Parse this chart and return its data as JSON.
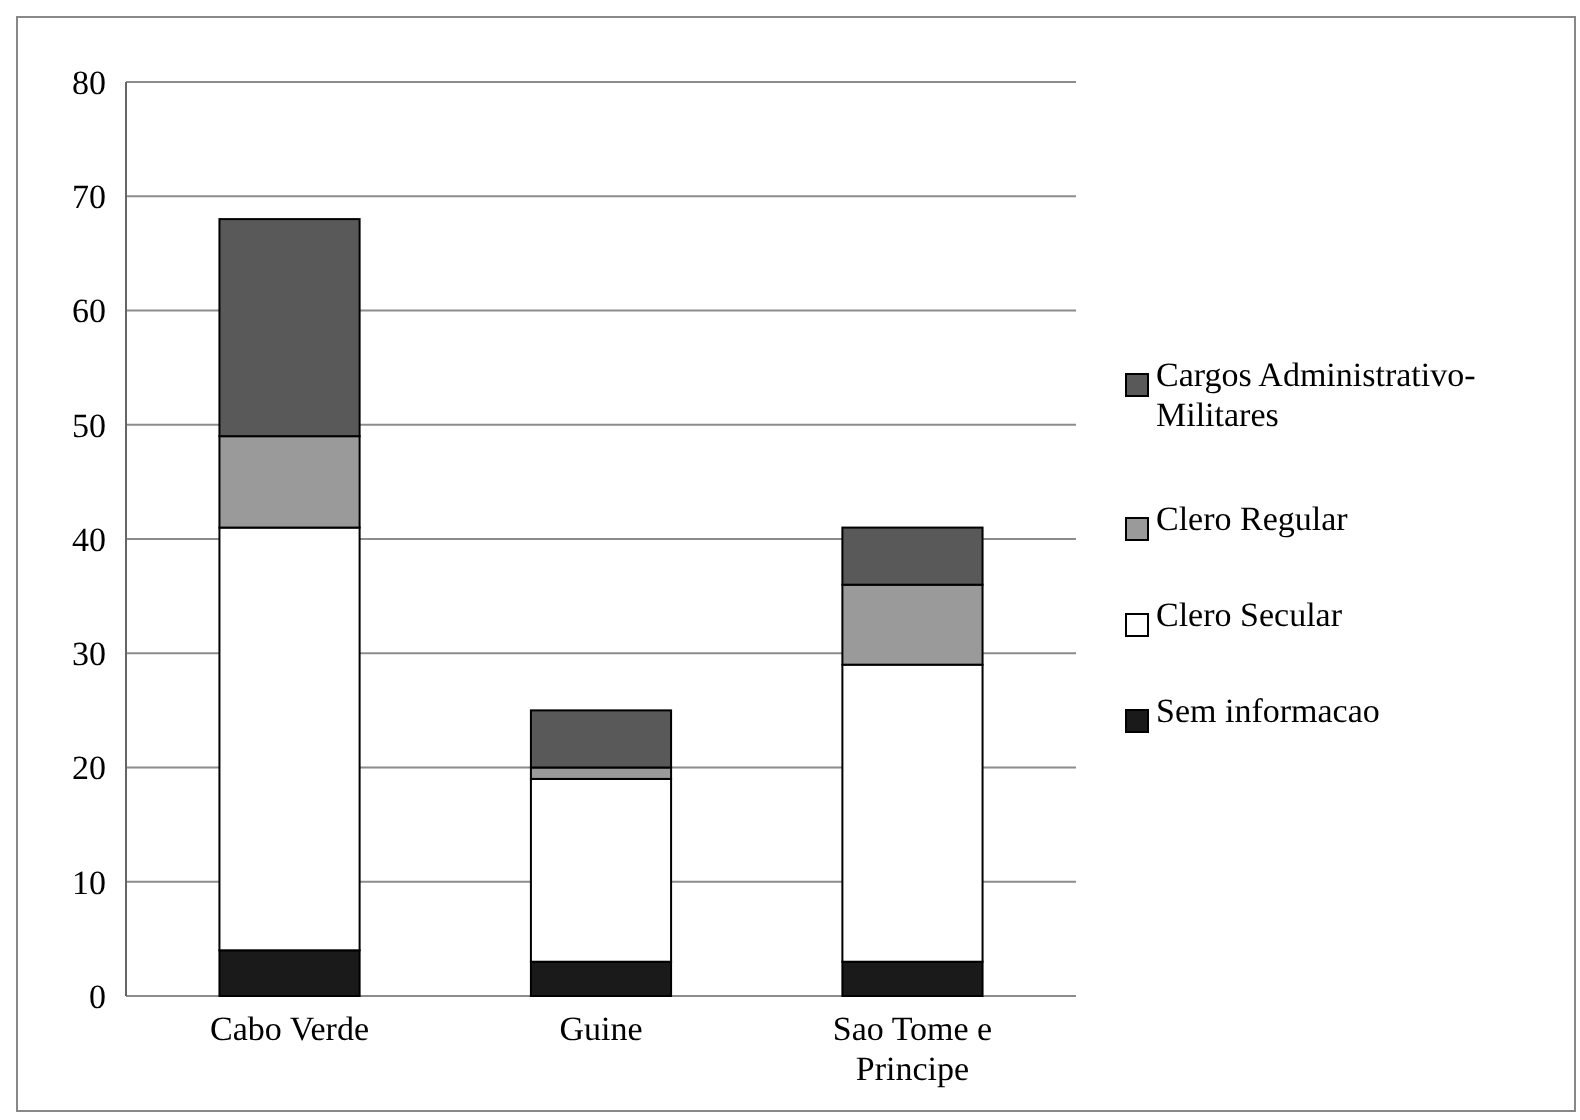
{
  "chart_data": {
    "type": "bar",
    "stacked": true,
    "categories": [
      "Cabo Verde",
      "Guine",
      "Sao Tome e Principe"
    ],
    "series": [
      {
        "name": "Sem informacao",
        "color": "#1a1a1a",
        "values": [
          4,
          3,
          3
        ]
      },
      {
        "name": "Clero Secular",
        "color": "#ffffff",
        "values": [
          37,
          16,
          26
        ]
      },
      {
        "name": "Clero Regular",
        "color": "#9a9a9a",
        "values": [
          8,
          1,
          7
        ]
      },
      {
        "name": "Cargos Administrativo-Militares",
        "color": "#595959",
        "values": [
          19,
          5,
          5
        ]
      }
    ],
    "ylim": [
      0,
      80
    ],
    "yticks": [
      0,
      10,
      20,
      30,
      40,
      50,
      60,
      70,
      80
    ],
    "grid": "y",
    "legend": "right"
  }
}
